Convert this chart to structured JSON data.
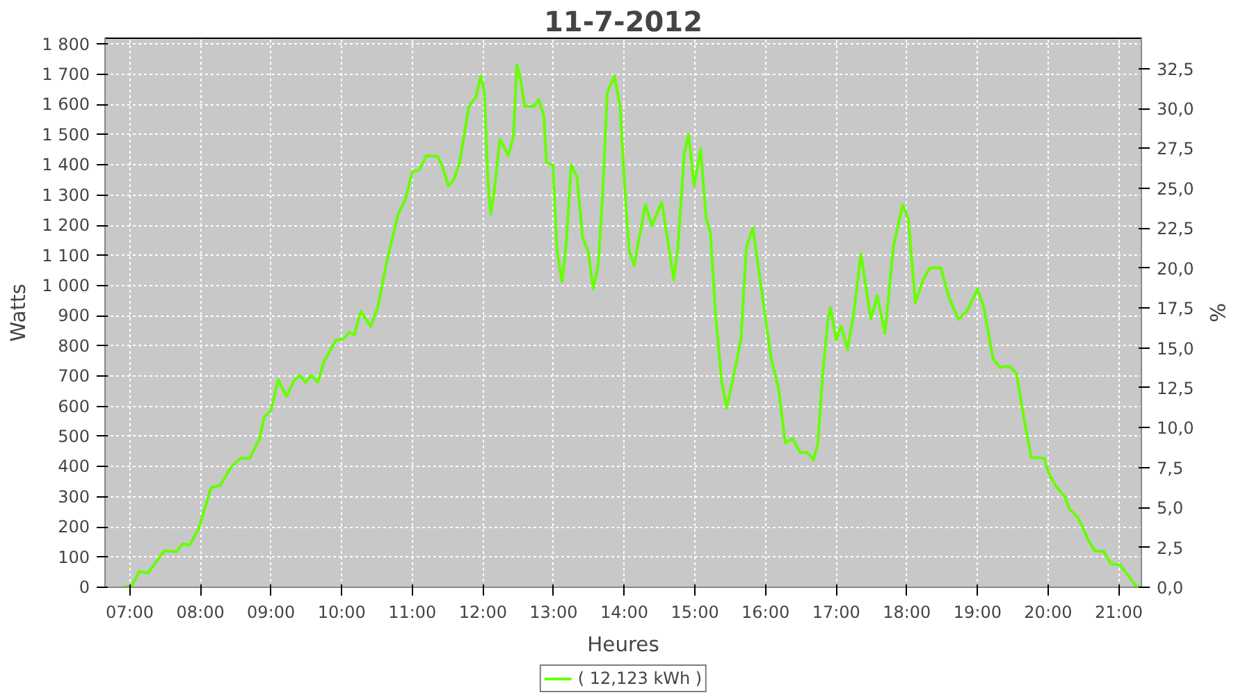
{
  "chart_data": {
    "type": "line",
    "title": "11-7-2012",
    "xlabel": "Heures",
    "ylabel": "Watts",
    "y2label": "%",
    "grid": true,
    "legend": "bottom",
    "marker": "none",
    "line_style": "solid",
    "xlim": [
      6.65,
      21.32
    ],
    "xticks": [
      {
        "value": 7,
        "label": "07:00"
      },
      {
        "value": 8,
        "label": "08:00"
      },
      {
        "value": 9,
        "label": "09:00"
      },
      {
        "value": 10,
        "label": "10:00"
      },
      {
        "value": 11,
        "label": "11:00"
      },
      {
        "value": 12,
        "label": "12:00"
      },
      {
        "value": 13,
        "label": "13:00"
      },
      {
        "value": 14,
        "label": "14:00"
      },
      {
        "value": 15,
        "label": "15:00"
      },
      {
        "value": 16,
        "label": "16:00"
      },
      {
        "value": 17,
        "label": "17:00"
      },
      {
        "value": 18,
        "label": "18:00"
      },
      {
        "value": 19,
        "label": "19:00"
      },
      {
        "value": 20,
        "label": "20:00"
      },
      {
        "value": 21,
        "label": "21:00"
      }
    ],
    "ylim": [
      0,
      1820
    ],
    "yticks": [
      0,
      100,
      200,
      300,
      400,
      500,
      600,
      700,
      800,
      900,
      {
        "value": 1000,
        "label": "1 000"
      },
      {
        "value": 1100,
        "label": "1 100"
      },
      {
        "value": 1200,
        "label": "1 200"
      },
      {
        "value": 1300,
        "label": "1 300"
      },
      {
        "value": 1400,
        "label": "1 400"
      },
      {
        "value": 1500,
        "label": "1 500"
      },
      {
        "value": 1600,
        "label": "1 600"
      },
      {
        "value": 1700,
        "label": "1 700"
      },
      {
        "value": 1800,
        "label": "1 800"
      }
    ],
    "y2lim": [
      0,
      34.4
    ],
    "y2ticks": [
      {
        "value": 0,
        "label": "0,0"
      },
      {
        "value": 2.5,
        "label": "2,5"
      },
      {
        "value": 5,
        "label": "5,0"
      },
      {
        "value": 7.5,
        "label": "7,5"
      },
      {
        "value": 10,
        "label": "10,0"
      },
      {
        "value": 12.5,
        "label": "12,5"
      },
      {
        "value": 15,
        "label": "15,0"
      },
      {
        "value": 17.5,
        "label": "17,5"
      },
      {
        "value": 20,
        "label": "20,0"
      },
      {
        "value": 22.5,
        "label": "22,5"
      },
      {
        "value": 25,
        "label": "25,0"
      },
      {
        "value": 27.5,
        "label": "27,5"
      },
      {
        "value": 30,
        "label": "30,0"
      },
      {
        "value": 32.5,
        "label": "32,5"
      }
    ],
    "series": [
      {
        "name": "( 12,123 kWh )",
        "color": "#66ff00",
        "x": [
          6.9,
          7.03,
          7.13,
          7.26,
          7.49,
          7.66,
          7.75,
          7.85,
          7.98,
          8.15,
          8.28,
          8.44,
          8.57,
          8.7,
          8.84,
          8.9,
          9.0,
          9.1,
          9.22,
          9.33,
          9.41,
          9.49,
          9.57,
          9.66,
          9.75,
          9.92,
          10.02,
          10.11,
          10.18,
          10.27,
          10.41,
          10.51,
          10.64,
          10.8,
          10.9,
          11.0,
          11.1,
          11.2,
          11.36,
          11.43,
          11.51,
          11.59,
          11.67,
          11.8,
          11.9,
          11.97,
          12.02,
          12.07,
          12.11,
          12.16,
          12.24,
          12.36,
          12.43,
          12.48,
          12.53,
          12.59,
          12.72,
          12.79,
          12.86,
          12.9,
          12.99,
          13.05,
          13.12,
          13.18,
          13.25,
          13.33,
          13.41,
          13.49,
          13.56,
          13.63,
          13.69,
          13.76,
          13.86,
          13.94,
          14.01,
          14.07,
          14.14,
          14.2,
          14.3,
          14.39,
          14.53,
          14.63,
          14.7,
          14.76,
          14.85,
          14.91,
          14.99,
          15.08,
          15.16,
          15.22,
          15.29,
          15.38,
          15.45,
          15.57,
          15.65,
          15.73,
          15.82,
          15.95,
          16.08,
          16.18,
          16.28,
          16.38,
          16.49,
          16.59,
          16.68,
          16.74,
          16.81,
          16.88,
          16.92,
          17.0,
          17.07,
          17.16,
          17.25,
          17.35,
          17.49,
          17.58,
          17.69,
          17.81,
          17.94,
          18.02,
          18.12,
          18.23,
          18.33,
          18.48,
          18.6,
          18.73,
          18.86,
          19.0,
          19.09,
          19.22,
          19.32,
          19.45,
          19.55,
          19.65,
          19.76,
          19.94,
          20.01,
          20.11,
          20.24,
          20.3,
          20.43,
          20.56,
          20.66,
          20.79,
          20.89,
          21.02,
          21.12,
          21.24,
          21.32
        ],
        "values": [
          0,
          5,
          51,
          48,
          121,
          118,
          144,
          140,
          198,
          330,
          338,
          400,
          428,
          428,
          493,
          563,
          586,
          687,
          633,
          687,
          702,
          679,
          702,
          679,
          749,
          819,
          822,
          845,
          837,
          915,
          865,
          927,
          1082,
          1237,
          1284,
          1377,
          1384,
          1431,
          1428,
          1392,
          1330,
          1353,
          1408,
          1594,
          1625,
          1695,
          1640,
          1346,
          1237,
          1315,
          1485,
          1431,
          1493,
          1733,
          1687,
          1594,
          1594,
          1617,
          1563,
          1408,
          1400,
          1113,
          1012,
          1144,
          1400,
          1361,
          1160,
          1113,
          989,
          1067,
          1284,
          1640,
          1695,
          1594,
          1315,
          1113,
          1067,
          1144,
          1268,
          1198,
          1276,
          1129,
          1020,
          1129,
          1439,
          1501,
          1330,
          1454,
          1222,
          1175,
          912,
          679,
          594,
          726,
          819,
          1129,
          1191,
          974,
          757,
          664,
          478,
          493,
          447,
          447,
          423,
          478,
          710,
          881,
          927,
          819,
          865,
          788,
          912,
          1105,
          888,
          966,
          842,
          1129,
          1268,
          1222,
          943,
          1020,
          1059,
          1059,
          958,
          888,
          919,
          989,
          927,
          757,
          729,
          733,
          710,
          571,
          431,
          428,
          377,
          335,
          299,
          260,
          229,
          160,
          121,
          118,
          78,
          74,
          43,
          5,
          0
        ]
      }
    ]
  }
}
